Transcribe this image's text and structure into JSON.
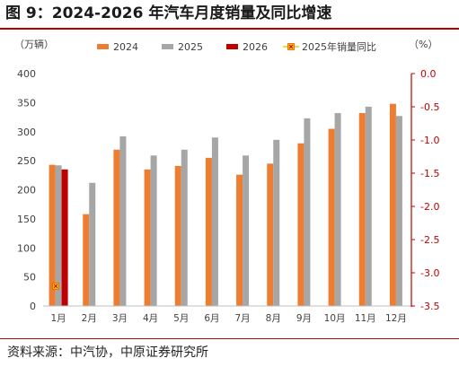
{
  "figure": {
    "title": "图 9：2024-2026 年汽车月度销量及同比增速",
    "source": "资料来源：中汽协，中原证券研究所"
  },
  "chart_data": {
    "type": "bar",
    "categories": [
      "1月",
      "2月",
      "3月",
      "4月",
      "5月",
      "6月",
      "7月",
      "8月",
      "9月",
      "10月",
      "11月",
      "12月"
    ],
    "series": [
      {
        "name": "2024",
        "type": "bar",
        "axis": "left",
        "color": "#ed7d31",
        "values": [
          243,
          158,
          269,
          235,
          241,
          255,
          226,
          245,
          280,
          305,
          332,
          348
        ]
      },
      {
        "name": "2025",
        "type": "bar",
        "axis": "left",
        "color": "#a6a6a6",
        "values": [
          242,
          212,
          292,
          259,
          269,
          290,
          259,
          286,
          323,
          332,
          343,
          327
        ]
      },
      {
        "name": "2026",
        "type": "bar",
        "axis": "left",
        "color": "#c00000",
        "values": [
          235,
          null,
          null,
          null,
          null,
          null,
          null,
          null,
          null,
          null,
          null,
          null
        ]
      },
      {
        "name": "2025年销量同比",
        "type": "marker",
        "axis": "right",
        "color": "#ffc000",
        "values": [
          -3.2,
          null,
          null,
          null,
          null,
          null,
          null,
          null,
          null,
          null,
          null,
          null
        ]
      }
    ],
    "left_axis": {
      "unit": "（万辆）",
      "ylim": [
        0,
        400
      ],
      "ticks": [
        "0",
        "50",
        "100",
        "150",
        "200",
        "250",
        "300",
        "350",
        "400"
      ]
    },
    "right_axis": {
      "unit": "（%）",
      "ylim": [
        -3.5,
        0
      ],
      "color": "#c00000",
      "ticks": [
        "0.0",
        "-0.5",
        "-1.0",
        "-1.5",
        "-2.0",
        "-2.5",
        "-3.0",
        "-3.5"
      ]
    },
    "legend_position": "top",
    "grid": false
  }
}
